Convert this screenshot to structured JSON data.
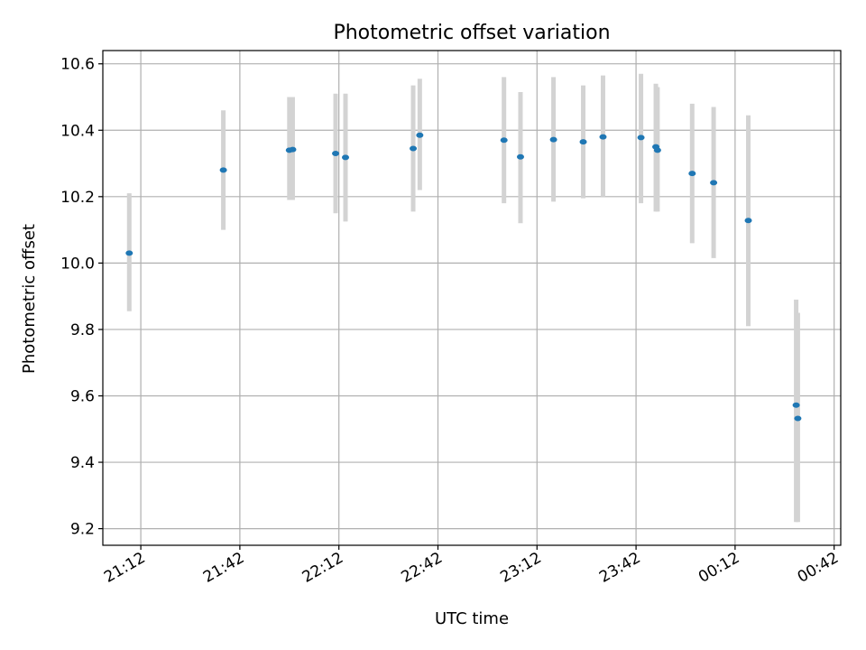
{
  "chart_data": {
    "type": "scatter",
    "title": "Photometric offset variation",
    "xlabel": "UTC time",
    "ylabel": "Photometric offset",
    "x_ticks": [
      "21:12",
      "21:42",
      "22:12",
      "22:42",
      "23:12",
      "23:42",
      "00:12",
      "00:42"
    ],
    "y_ticks": [
      "9.2",
      "9.4",
      "9.6",
      "9.8",
      "10.0",
      "10.2",
      "10.4",
      "10.6"
    ],
    "ylim": [
      9.15,
      10.64
    ],
    "xlim": [
      "21:00:30",
      "00:44:00"
    ],
    "grid": true,
    "marker_color": "#1f77b4",
    "errorbar_color": "#d3d3d3",
    "points": [
      {
        "x": "21:08:30",
        "y": 10.03,
        "ylow": 9.855,
        "yhigh": 10.21
      },
      {
        "x": "21:37:00",
        "y": 10.28,
        "ylow": 10.1,
        "yhigh": 10.46
      },
      {
        "x": "21:57:00",
        "y": 10.34,
        "ylow": 10.19,
        "yhigh": 10.5
      },
      {
        "x": "21:58:00",
        "y": 10.342,
        "ylow": 10.19,
        "yhigh": 10.5
      },
      {
        "x": "22:11:00",
        "y": 10.33,
        "ylow": 10.15,
        "yhigh": 10.51
      },
      {
        "x": "22:14:00",
        "y": 10.318,
        "ylow": 10.125,
        "yhigh": 10.51
      },
      {
        "x": "22:34:30",
        "y": 10.345,
        "ylow": 10.155,
        "yhigh": 10.535
      },
      {
        "x": "22:36:30",
        "y": 10.385,
        "ylow": 10.22,
        "yhigh": 10.555
      },
      {
        "x": "23:02:00",
        "y": 10.37,
        "ylow": 10.18,
        "yhigh": 10.56
      },
      {
        "x": "23:07:00",
        "y": 10.32,
        "ylow": 10.12,
        "yhigh": 10.515
      },
      {
        "x": "23:17:00",
        "y": 10.372,
        "ylow": 10.185,
        "yhigh": 10.56
      },
      {
        "x": "23:26:00",
        "y": 10.365,
        "ylow": 10.195,
        "yhigh": 10.535
      },
      {
        "x": "23:32:00",
        "y": 10.38,
        "ylow": 10.2,
        "yhigh": 10.565
      },
      {
        "x": "23:43:30",
        "y": 10.378,
        "ylow": 10.18,
        "yhigh": 10.57
      },
      {
        "x": "23:48:00",
        "y": 10.35,
        "ylow": 10.155,
        "yhigh": 10.54
      },
      {
        "x": "23:48:30",
        "y": 10.34,
        "ylow": 10.155,
        "yhigh": 10.53
      },
      {
        "x": "23:59:00",
        "y": 10.27,
        "ylow": 10.06,
        "yhigh": 10.48
      },
      {
        "x": "00:05:30",
        "y": 10.242,
        "ylow": 10.015,
        "yhigh": 10.47
      },
      {
        "x": "00:16:00",
        "y": 10.128,
        "ylow": 9.81,
        "yhigh": 10.445
      },
      {
        "x": "00:30:30",
        "y": 9.572,
        "ylow": 9.22,
        "yhigh": 9.89
      },
      {
        "x": "00:31:00",
        "y": 9.532,
        "ylow": 9.22,
        "yhigh": 9.85
      }
    ]
  }
}
